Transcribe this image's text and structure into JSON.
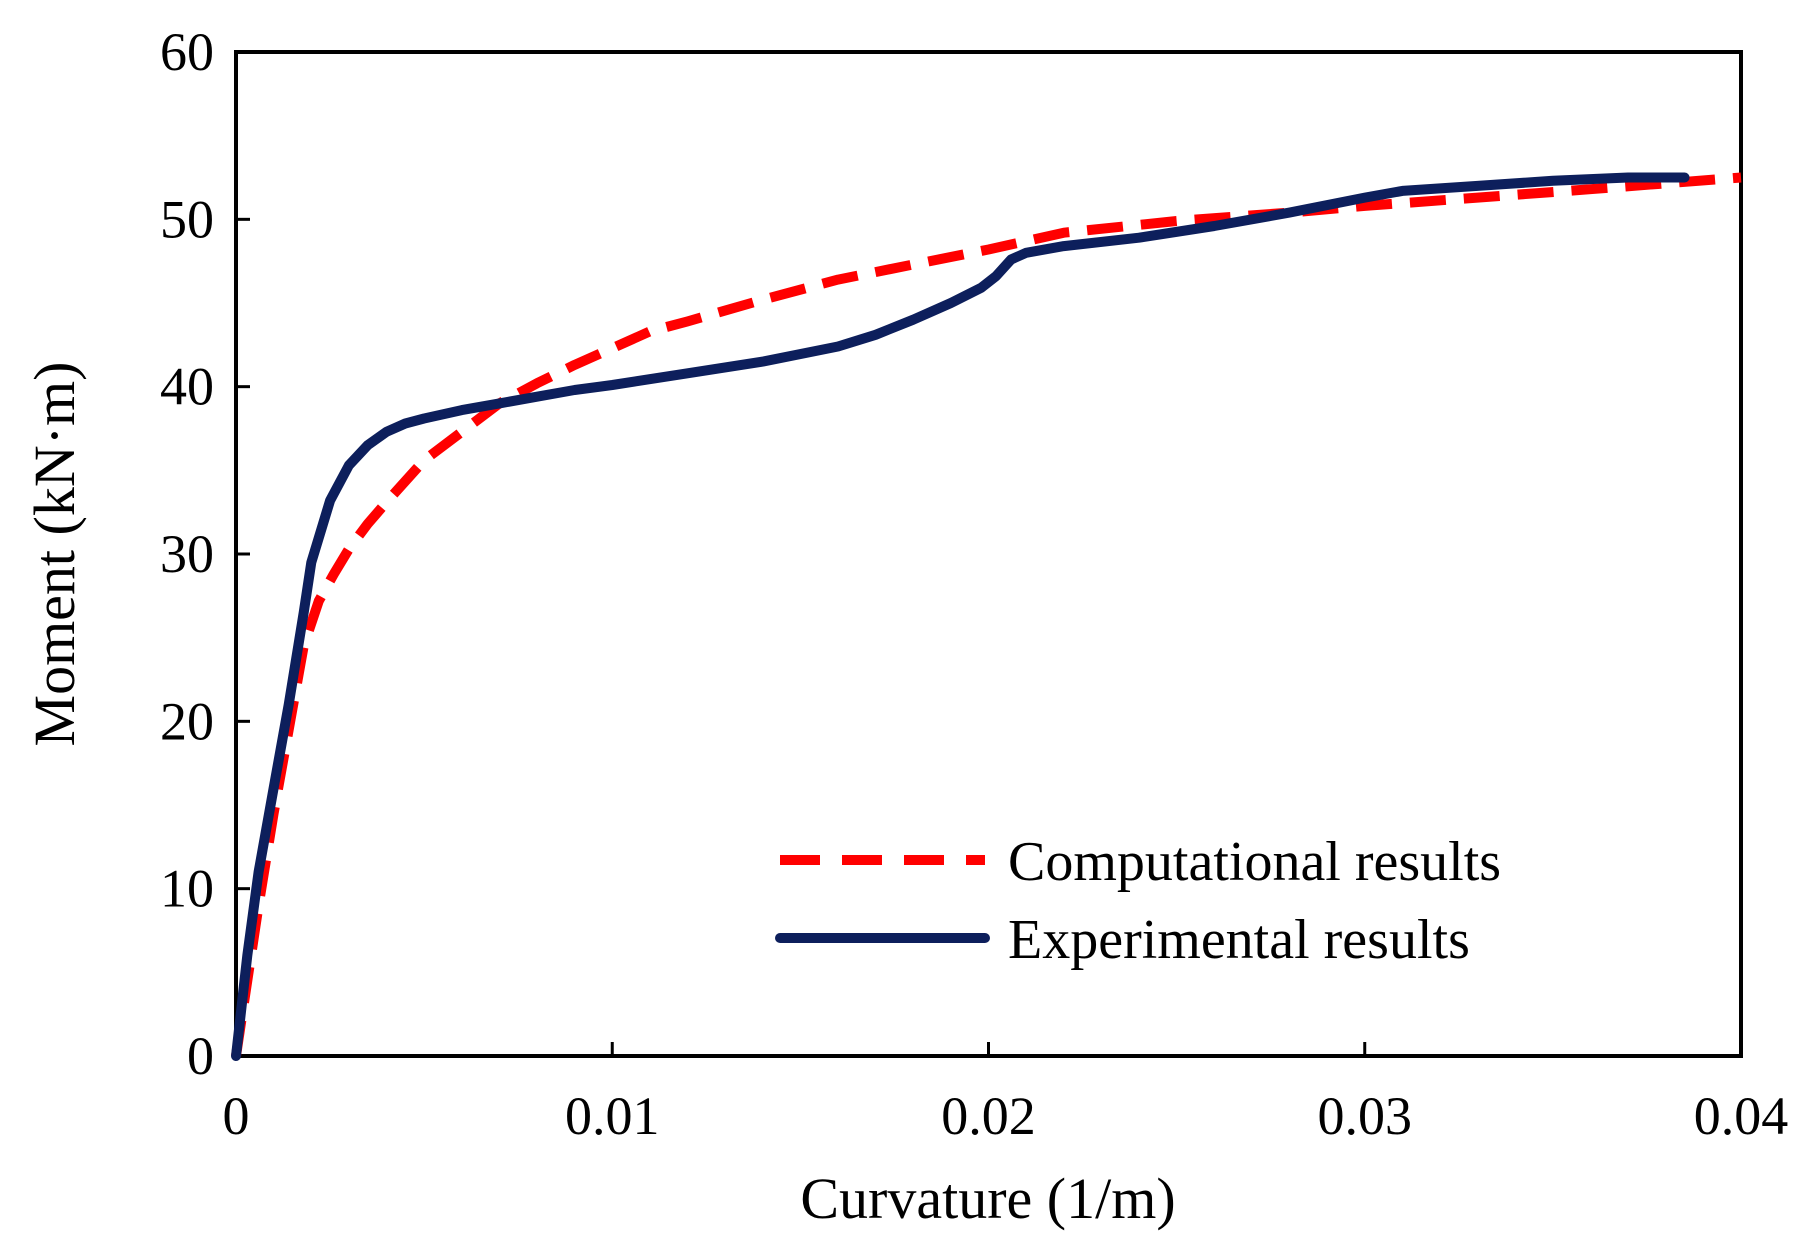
{
  "chart_data": {
    "type": "line",
    "title": "",
    "xlabel": "Curvature (1/m)",
    "ylabel": "Moment (kN·m)",
    "xlim": [
      0,
      0.04
    ],
    "ylim": [
      0,
      60
    ],
    "x_ticks": [
      0,
      0.01,
      0.02,
      0.03,
      0.04
    ],
    "y_ticks": [
      0,
      10,
      20,
      30,
      40,
      50,
      60
    ],
    "x_tick_labels": [
      "0",
      "0.01",
      "0.02",
      "0.03",
      "0.04"
    ],
    "y_tick_labels": [
      "0",
      "10",
      "20",
      "30",
      "40",
      "50",
      "60"
    ],
    "grid": false,
    "legend_position": "bottom-right",
    "series": [
      {
        "name": "Computational results",
        "color": "#ff0000",
        "style": "dashed",
        "x": [
          0,
          0.0003,
          0.0006,
          0.001,
          0.0014,
          0.0018,
          0.0022,
          0.0026,
          0.003,
          0.0035,
          0.004,
          0.005,
          0.006,
          0.007,
          0.008,
          0.009,
          0.01,
          0.011,
          0.012,
          0.014,
          0.016,
          0.018,
          0.02,
          0.022,
          0.025,
          0.028,
          0.03,
          0.033,
          0.036,
          0.04
        ],
        "y": [
          0,
          4.5,
          9,
          14.5,
          19.5,
          24.5,
          27.2,
          28.8,
          30.3,
          31.8,
          33.1,
          35.6,
          37.3,
          39,
          40.2,
          41.3,
          42.3,
          43.3,
          43.9,
          45.2,
          46.4,
          47.3,
          48.2,
          49.2,
          49.9,
          50.4,
          50.8,
          51.3,
          51.8,
          52.5
        ]
      },
      {
        "name": "Experimental results",
        "color": "#0d1f5c",
        "style": "solid",
        "x": [
          0,
          0.0003,
          0.0006,
          0.001,
          0.0014,
          0.0018,
          0.002,
          0.0025,
          0.003,
          0.0035,
          0.004,
          0.0045,
          0.005,
          0.006,
          0.007,
          0.008,
          0.009,
          0.01,
          0.012,
          0.014,
          0.016,
          0.017,
          0.018,
          0.019,
          0.0198,
          0.0202,
          0.0206,
          0.021,
          0.022,
          0.024,
          0.026,
          0.028,
          0.03,
          0.031,
          0.033,
          0.035,
          0.037,
          0.0385
        ],
        "y": [
          0,
          6,
          11,
          16,
          21,
          26.5,
          29.5,
          33.2,
          35.3,
          36.5,
          37.3,
          37.8,
          38.1,
          38.6,
          39,
          39.4,
          39.8,
          40.1,
          40.8,
          41.5,
          42.4,
          43.1,
          44,
          45,
          45.9,
          46.6,
          47.6,
          48,
          48.4,
          48.9,
          49.6,
          50.4,
          51.3,
          51.7,
          52,
          52.3,
          52.5,
          52.5
        ]
      }
    ]
  }
}
